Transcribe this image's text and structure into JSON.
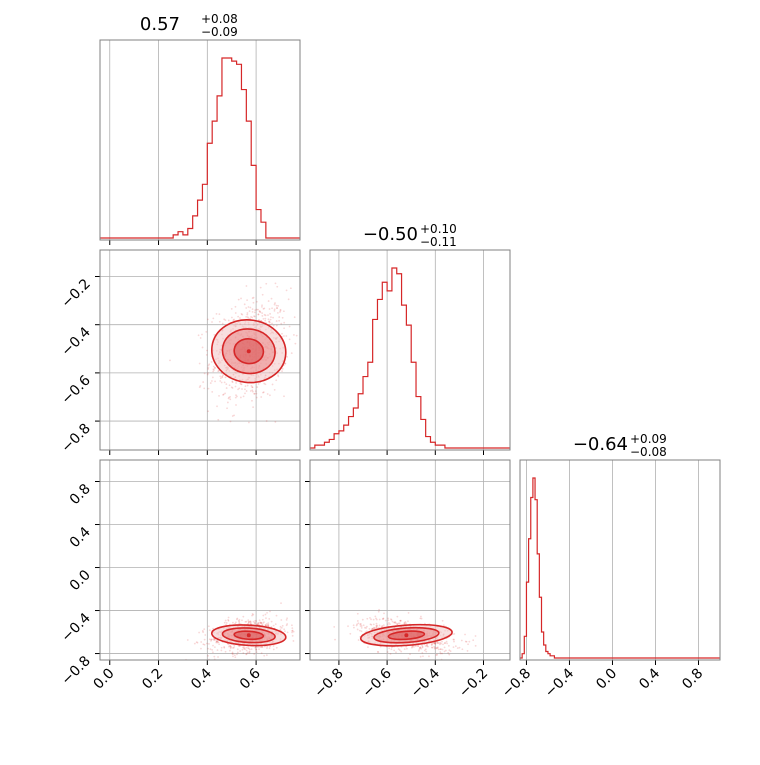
{
  "colors": {
    "series": "#d62728",
    "grid": "#b0b0b0",
    "frame": "#808080",
    "fill_light": "#f3c5c5",
    "fill_mid": "#e98585",
    "fill_dark": "#d94f4f"
  },
  "chart_data": {
    "type": "corner",
    "parameters": [
      {
        "title": {
          "median": "0.57",
          "plus": "+0.08",
          "minus": "−0.09"
        },
        "range": [
          -0.04,
          0.78
        ],
        "ticks": [
          0.0,
          0.2,
          0.4,
          0.6
        ],
        "tick_labels": [
          "0.0",
          "0.2",
          "0.4",
          "0.6"
        ],
        "histogram": {
          "bin_edges_start": 0.26,
          "bin_width": 0.02,
          "counts": [
            1,
            2,
            1,
            3,
            7,
            12,
            17,
            30,
            37,
            45,
            57,
            57,
            56,
            55,
            47,
            37,
            23,
            9,
            5
          ]
        }
      },
      {
        "title": {
          "median": "−0.50",
          "plus": "+0.10",
          "minus": "−0.11"
        },
        "range": [
          -0.92,
          -0.09
        ],
        "ticks": [
          -0.8,
          -0.6,
          -0.4,
          -0.2
        ],
        "tick_labels": [
          "−0.8",
          "−0.6",
          "−0.4",
          "−0.2"
        ],
        "histogram": {
          "bin_edges_start": -0.9,
          "bin_width": 0.02,
          "counts": [
            1,
            1,
            2,
            3,
            5,
            6,
            8,
            11,
            14,
            19,
            25,
            30,
            45,
            52,
            58,
            55,
            63,
            61,
            50,
            43,
            30,
            18,
            10,
            4,
            2,
            1,
            1
          ]
        }
      },
      {
        "title": {
          "median": "−0.64",
          "plus": "+0.09",
          "minus": "−0.08"
        },
        "range": [
          -0.86,
          1.0
        ],
        "ticks": [
          -0.8,
          -0.4,
          0.0,
          0.4,
          0.8
        ],
        "tick_labels": [
          "−0.8",
          "−0.4",
          "0.0",
          "0.4",
          "0.8"
        ],
        "histogram": {
          "bin_edges_start": -0.84,
          "bin_width": 0.02,
          "counts": [
            2,
            10,
            35,
            55,
            74,
            83,
            73,
            48,
            28,
            12,
            6,
            3,
            2,
            1,
            1
          ]
        }
      }
    ],
    "pairs": [
      {
        "x_param": 0,
        "y_param": 1,
        "center": [
          0.57,
          -0.51
        ],
        "spread": [
          0.08,
          0.11
        ],
        "correlation": 0.2
      },
      {
        "x_param": 0,
        "y_param": 2,
        "center": [
          0.57,
          -0.63
        ],
        "spread": [
          0.08,
          0.08
        ],
        "correlation": 0.25
      },
      {
        "x_param": 1,
        "y_param": 2,
        "center": [
          -0.52,
          -0.63
        ],
        "spread": [
          0.1,
          0.08
        ],
        "correlation": -0.4
      }
    ],
    "grid": true
  }
}
